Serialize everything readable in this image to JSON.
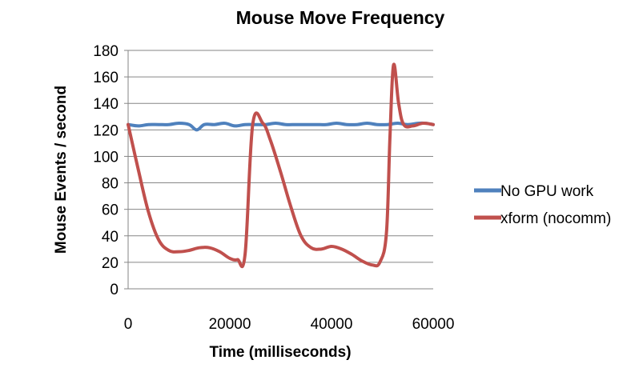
{
  "chart_data": {
    "type": "line",
    "title": "Mouse Move Frequency",
    "xlabel": "Time (milliseconds)",
    "ylabel": "Mouse Events / second",
    "xlim": [
      0,
      60000
    ],
    "ylim": [
      0,
      180
    ],
    "xticks": [
      0,
      20000,
      40000,
      60000
    ],
    "yticks": [
      0,
      20,
      40,
      60,
      80,
      100,
      120,
      140,
      160,
      180
    ],
    "xtick_labels": [
      "0",
      "20000",
      "40000",
      "60000"
    ],
    "ytick_labels": [
      "0",
      "20",
      "40",
      "60",
      "80",
      "100",
      "120",
      "140",
      "160",
      "180"
    ],
    "grid": "horizontal",
    "legend_position": "right",
    "series": [
      {
        "name": "No GPU work",
        "color": "#4F81BD",
        "x": [
          0,
          2000,
          4000,
          6000,
          8000,
          10000,
          12000,
          13500,
          15000,
          17000,
          19000,
          21000,
          23000,
          25000,
          27000,
          29000,
          31000,
          33000,
          35000,
          37000,
          39000,
          41000,
          43000,
          45000,
          47000,
          49000,
          51000,
          53000,
          55000,
          57000,
          58500,
          60000
        ],
        "values": [
          124,
          123,
          124,
          124,
          124,
          125,
          124,
          120,
          124,
          124,
          125,
          123,
          124,
          124,
          124,
          125,
          124,
          124,
          124,
          124,
          124,
          125,
          124,
          124,
          125,
          124,
          124,
          125,
          124,
          125,
          125,
          124
        ]
      },
      {
        "name": "xform (nocomm)",
        "color": "#C0504D",
        "x": [
          0,
          2000,
          4000,
          6000,
          8000,
          10000,
          12000,
          14000,
          16000,
          18000,
          20000,
          21500,
          23000,
          24500,
          26500,
          28000,
          30000,
          32000,
          34000,
          36000,
          38000,
          40000,
          42000,
          44000,
          46000,
          48000,
          49500,
          50800,
          51500,
          52200,
          53200,
          54200,
          56000,
          58000,
          60000
        ],
        "values": [
          124,
          90,
          58,
          37,
          29,
          28,
          29,
          31,
          31,
          28,
          23,
          22,
          26,
          124,
          125,
          112,
          88,
          62,
          40,
          31,
          30,
          32,
          30,
          26,
          21,
          18,
          20,
          42,
          115,
          169,
          140,
          124,
          123,
          125,
          124
        ]
      }
    ]
  }
}
